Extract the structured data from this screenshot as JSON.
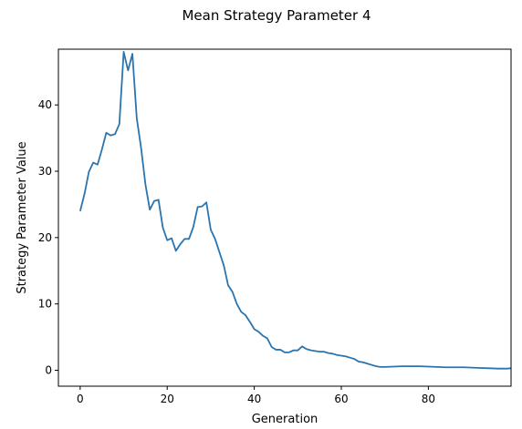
{
  "chart_data": {
    "type": "line",
    "title": "Mean Strategy Parameter 4",
    "xlabel": "Generation",
    "ylabel": "Strategy Parameter Value",
    "xlim": [
      -5,
      99
    ],
    "ylim": [
      -2.4,
      48.4
    ],
    "xticks": [
      0,
      20,
      40,
      60,
      80
    ],
    "yticks": [
      0,
      10,
      20,
      30,
      40
    ],
    "grid": false,
    "line_color": "#2a75b0",
    "series": [
      {
        "x": [
          0,
          1,
          2,
          3,
          4,
          5,
          6,
          7,
          8,
          9,
          10,
          11,
          12,
          13,
          14,
          15,
          16,
          17,
          18,
          19,
          20,
          21,
          22,
          23,
          24,
          25,
          26,
          27,
          28,
          29,
          30,
          31,
          32,
          33,
          34,
          35,
          36,
          37,
          38,
          39,
          40,
          41,
          42,
          43,
          44,
          45,
          46,
          47,
          48,
          49,
          50,
          51,
          52,
          53,
          54,
          55,
          56,
          57,
          58,
          59,
          60,
          61,
          62,
          63,
          64,
          65,
          66,
          67,
          68,
          69,
          70,
          72,
          74,
          76,
          78,
          80,
          82,
          84,
          86,
          88,
          90,
          92,
          94,
          96,
          98,
          99
        ],
        "values": [
          24.0,
          26.6,
          29.9,
          31.3,
          31.0,
          33.3,
          35.8,
          35.4,
          35.6,
          37.1,
          48.0,
          45.2,
          47.7,
          38.0,
          33.5,
          28.0,
          24.2,
          25.5,
          25.7,
          21.5,
          19.6,
          19.9,
          18.0,
          19.0,
          19.8,
          19.8,
          21.6,
          24.6,
          24.7,
          25.3,
          21.2,
          19.8,
          17.8,
          15.8,
          12.8,
          11.8,
          10.0,
          8.8,
          8.3,
          7.3,
          6.2,
          5.8,
          5.2,
          4.8,
          3.5,
          3.1,
          3.1,
          2.7,
          2.7,
          3.0,
          3.0,
          3.6,
          3.2,
          3.0,
          2.9,
          2.8,
          2.8,
          2.6,
          2.5,
          2.3,
          2.2,
          2.1,
          1.9,
          1.7,
          1.3,
          1.2,
          1.0,
          0.8,
          0.6,
          0.5,
          0.5,
          0.55,
          0.6,
          0.6,
          0.6,
          0.55,
          0.5,
          0.45,
          0.45,
          0.45,
          0.4,
          0.35,
          0.3,
          0.25,
          0.25,
          0.3
        ]
      }
    ]
  }
}
